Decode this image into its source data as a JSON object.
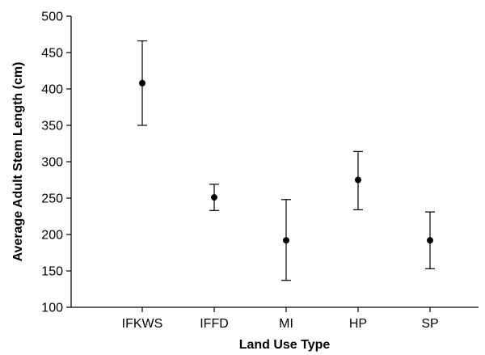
{
  "chart_data": {
    "type": "scatter",
    "title": "",
    "xlabel": "Land Use Type",
    "ylabel": "Average Adult Stem Length (cm)",
    "categories": [
      "IFKWS",
      "IFFD",
      "MI",
      "HP",
      "SP"
    ],
    "series": [
      {
        "values": [
          408,
          251,
          192,
          275,
          192
        ],
        "error_low": [
          350,
          233,
          137,
          234,
          153
        ],
        "error_high": [
          466,
          269,
          248,
          314,
          231
        ]
      }
    ],
    "ylim": [
      100,
      500
    ],
    "yticks": [
      100,
      150,
      200,
      250,
      300,
      350,
      400,
      450,
      500
    ],
    "grid": false,
    "legend": "none",
    "marker_color": "#000000"
  }
}
